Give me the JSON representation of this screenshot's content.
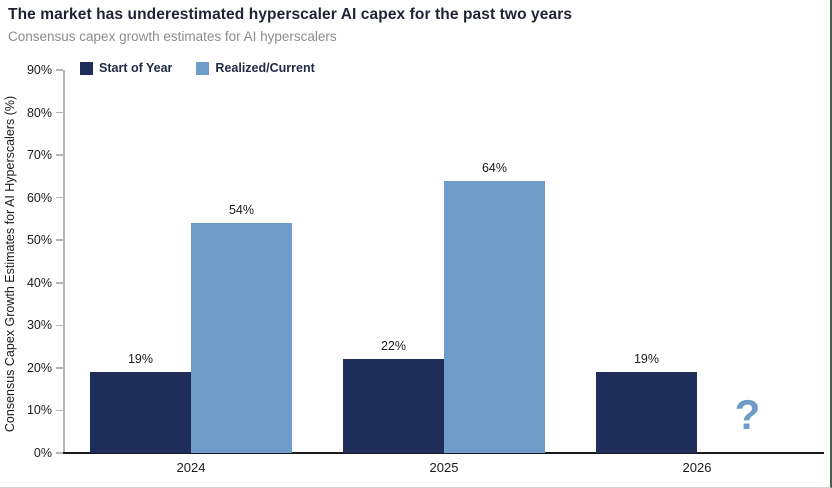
{
  "header": {
    "title": "The market has underestimated hyperscaler AI capex for the past two years",
    "subtitle": "Consensus capex growth estimates for AI hyperscalers"
  },
  "chart_data": {
    "type": "bar",
    "title": "The market has underestimated hyperscaler AI capex for the past two years",
    "subtitle": "Consensus capex growth estimates for AI hyperscalers",
    "categories": [
      "2024",
      "2025",
      "2026"
    ],
    "series": [
      {
        "name": "Start of Year",
        "color": "#1f2d5a",
        "values": [
          19,
          22,
          19
        ],
        "data_labels": [
          "19%",
          "22%",
          "19%"
        ]
      },
      {
        "name": "Realized/Current",
        "color": "#6f9bc9",
        "values": [
          54,
          64,
          null
        ],
        "data_labels": [
          "54%",
          "64%",
          null
        ]
      }
    ],
    "missing_value_marker": "?",
    "missing_value_marker_color": "#6f9bc9",
    "xlabel": "",
    "ylabel": "Consensus Capex Growth Estimates for AI Hyperscalers (%)",
    "ylim": [
      0,
      90
    ],
    "ytick_labels": [
      "0%",
      "10%",
      "20%",
      "30%",
      "40%",
      "50%",
      "60%",
      "70%",
      "80%",
      "90%"
    ],
    "ytick_values": [
      0,
      10,
      20,
      30,
      40,
      50,
      60,
      70,
      80,
      90
    ],
    "grid": false,
    "legend_position": "top-left"
  },
  "colors": {
    "title_text": "#1f2333",
    "subtitle_text": "#8c8c8c",
    "axis_text": "#1a1a1a",
    "x_axis_line": "#1a1a1a",
    "y_axis_line": "#b5b5b5",
    "dark_series": "#1f2d5a",
    "light_series": "#6f9bc9",
    "frame_border": "#46604b"
  }
}
